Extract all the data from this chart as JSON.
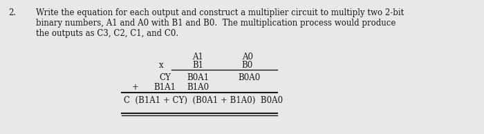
{
  "question_number": "2.",
  "question_text": "Write the equation for each output and construct a multiplier circuit to multiply two 2-bit\nbinary numbers, A1 and A0 with B1 and B0.  The multiplication process would produce\nthe outputs as C3, C2, C1, and C0.",
  "bg_color": "#e8e8e8",
  "text_color": "#1a1a1a",
  "table": {
    "col1_header": "",
    "col2_header": "A1\nB1",
    "col3_header": "A0\nB0",
    "x_label": "x",
    "plus_label": "+",
    "cy_label": "CY",
    "b1a1_label": "B1A1",
    "b0a1_label": "B0A1",
    "b0a0_top": "B0A0",
    "b1a0_label": "B1A0",
    "result_label": "C  (B1A1 + CY)  (B0A1 + B1A0)  B0A0"
  }
}
